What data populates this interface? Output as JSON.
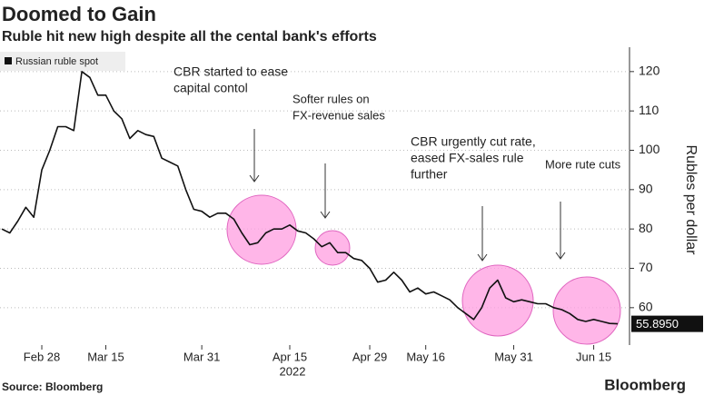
{
  "chart_data": {
    "type": "line",
    "title": "Doomed to Gain",
    "subtitle": "Ruble hit new high despite all the cental bank's efforts",
    "y_axis_label": "Rubles per dollar",
    "x_axis_year": "2022",
    "source": "Source: Bloomberg",
    "brand": "Bloomberg",
    "annotations": [
      {
        "lines": [
          "CBR started to ease",
          "capital contol"
        ]
      },
      {
        "lines": [
          "Softer rules on",
          "FX-revenue sales"
        ]
      },
      {
        "lines": [
          "CBR urgently cut rate,",
          "eased FX-sales rule",
          "further"
        ]
      },
      {
        "lines": [
          "More rute cuts"
        ]
      }
    ],
    "categories": [
      null,
      null,
      null,
      null,
      null,
      "Feb 28",
      null,
      null,
      null,
      null,
      null,
      null,
      null,
      "Mar 15",
      null,
      null,
      null,
      null,
      null,
      null,
      null,
      null,
      null,
      null,
      null,
      "Mar 31",
      null,
      null,
      null,
      null,
      null,
      null,
      null,
      null,
      null,
      null,
      "Apr 15",
      null,
      null,
      null,
      null,
      null,
      null,
      null,
      null,
      null,
      "Apr 29",
      null,
      null,
      null,
      null,
      null,
      null,
      "May 16",
      null,
      null,
      null,
      null,
      null,
      null,
      null,
      null,
      null,
      null,
      "May 31",
      null,
      null,
      null,
      null,
      null,
      null,
      null,
      null,
      null,
      "Jun 15",
      null,
      null,
      null
    ],
    "series": [
      {
        "name": "Russian ruble spot",
        "color": "#111111",
        "values": [
          80,
          79,
          82,
          85.5,
          83,
          95,
          100,
          106,
          106,
          105,
          120,
          118.5,
          114,
          114,
          110,
          108,
          103,
          105,
          104,
          103.5,
          98,
          97,
          96,
          90,
          85,
          84.5,
          83,
          84,
          84,
          82.5,
          79,
          76,
          76.5,
          79,
          80,
          80,
          81,
          79.5,
          79,
          77.5,
          75.5,
          76.5,
          74,
          74,
          72.5,
          72,
          70,
          66.5,
          67,
          69,
          67,
          64,
          65,
          63.5,
          64,
          63,
          62,
          60,
          58.5,
          57,
          60,
          65,
          67,
          62.5,
          61.5,
          62,
          61.5,
          61,
          61,
          60,
          59.5,
          58.5,
          57,
          56.5,
          57,
          56.5,
          56,
          55.895
        ],
        "value_labels": [
          null,
          null,
          null,
          null,
          null,
          null,
          null,
          null,
          null,
          null,
          null,
          null,
          null,
          null,
          null,
          null,
          null,
          null,
          null,
          null,
          null,
          null,
          null,
          null,
          null,
          null,
          null,
          null,
          null,
          null,
          null,
          null,
          null,
          null,
          null,
          null,
          null,
          null,
          null,
          null,
          null,
          null,
          null,
          null,
          null,
          null,
          null,
          null,
          null,
          null,
          null,
          null,
          null,
          null,
          null,
          null,
          null,
          null,
          null,
          null,
          null,
          null,
          null,
          null,
          null,
          null,
          null,
          null,
          null,
          null,
          null,
          null,
          null,
          null,
          null,
          null,
          null,
          "55.8950"
        ]
      }
    ],
    "ylim": [
      50.5,
      125.5
    ],
    "yticks": [
      60,
      70,
      80,
      90,
      100,
      110,
      120
    ],
    "grid": true
  }
}
